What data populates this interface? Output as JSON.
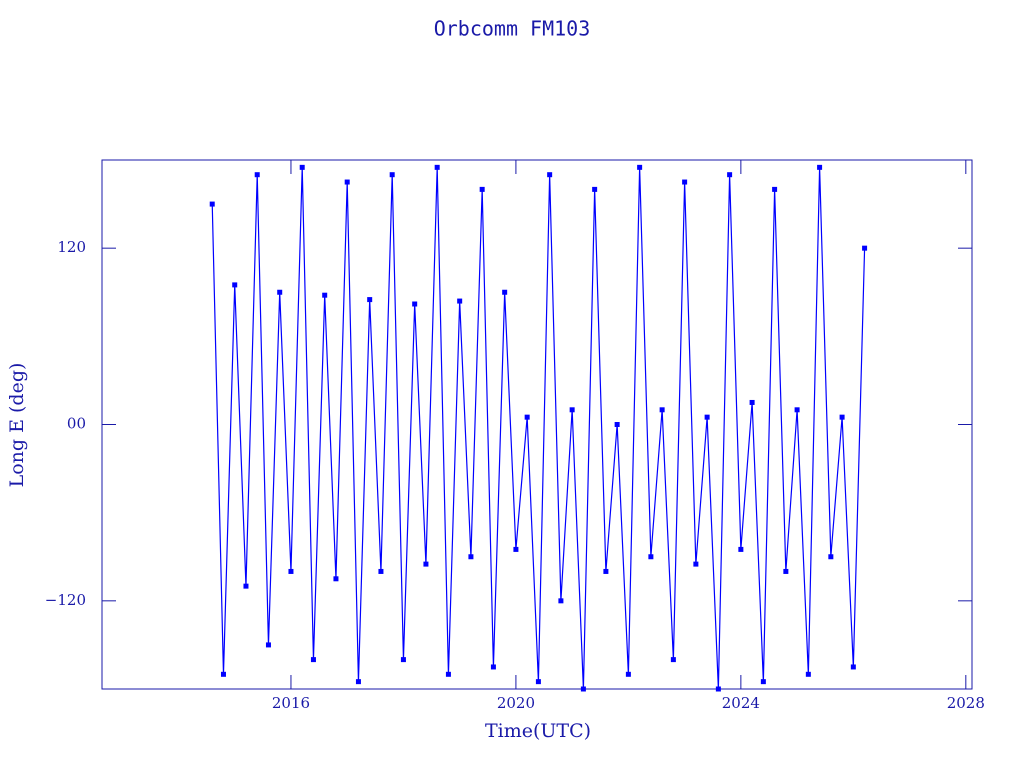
{
  "chart_data": {
    "type": "line",
    "title": "Orbcomm FM103",
    "xlabel": "Time(UTC)",
    "ylabel": "Long E (deg)",
    "color": "#0000ff",
    "marker": "square",
    "x": [
      2014.6,
      2014.8,
      2015.0,
      2015.2,
      2015.4,
      2015.6,
      2015.8,
      2016.0,
      2016.2,
      2016.4,
      2016.6,
      2016.8,
      2017.0,
      2017.2,
      2017.4,
      2017.6,
      2017.8,
      2018.0,
      2018.2,
      2018.4,
      2018.6,
      2018.8,
      2019.0,
      2019.2,
      2019.4,
      2019.6,
      2019.8,
      2020.0,
      2020.2,
      2020.4,
      2020.6,
      2020.8,
      2021.0,
      2021.2,
      2021.4,
      2021.6,
      2021.8,
      2022.0,
      2022.2,
      2022.4,
      2022.6,
      2022.8,
      2023.0,
      2023.2,
      2023.4,
      2023.6,
      2023.8,
      2024.0,
      2024.2,
      2024.4,
      2024.6,
      2024.8,
      2025.0,
      2025.2,
      2025.4,
      2025.6,
      2025.8,
      2026.0,
      2026.2
    ],
    "values": [
      150,
      -170,
      95,
      -110,
      170,
      -150,
      90,
      -100,
      175,
      -160,
      88,
      -105,
      165,
      -175,
      85,
      -100,
      170,
      -160,
      82,
      -95,
      175,
      -170,
      84,
      -90,
      160,
      -165,
      90,
      -85,
      5,
      -175,
      170,
      -120,
      10,
      -180,
      160,
      -100,
      0,
      -170,
      175,
      -90,
      10,
      -160,
      165,
      -95,
      5,
      -180,
      170,
      -85,
      15,
      -175,
      160,
      -100,
      10,
      -170,
      175,
      -90,
      5,
      -165,
      120
    ],
    "xlim": [
      2012.64,
      2028.11
    ],
    "xticks": [
      2016,
      2020,
      2024,
      2028
    ],
    "ylim": [
      -180,
      180
    ],
    "yticks": [
      {
        "value": -120,
        "label": "−120"
      },
      {
        "value": 0,
        "label": "00"
      },
      120
    ]
  }
}
